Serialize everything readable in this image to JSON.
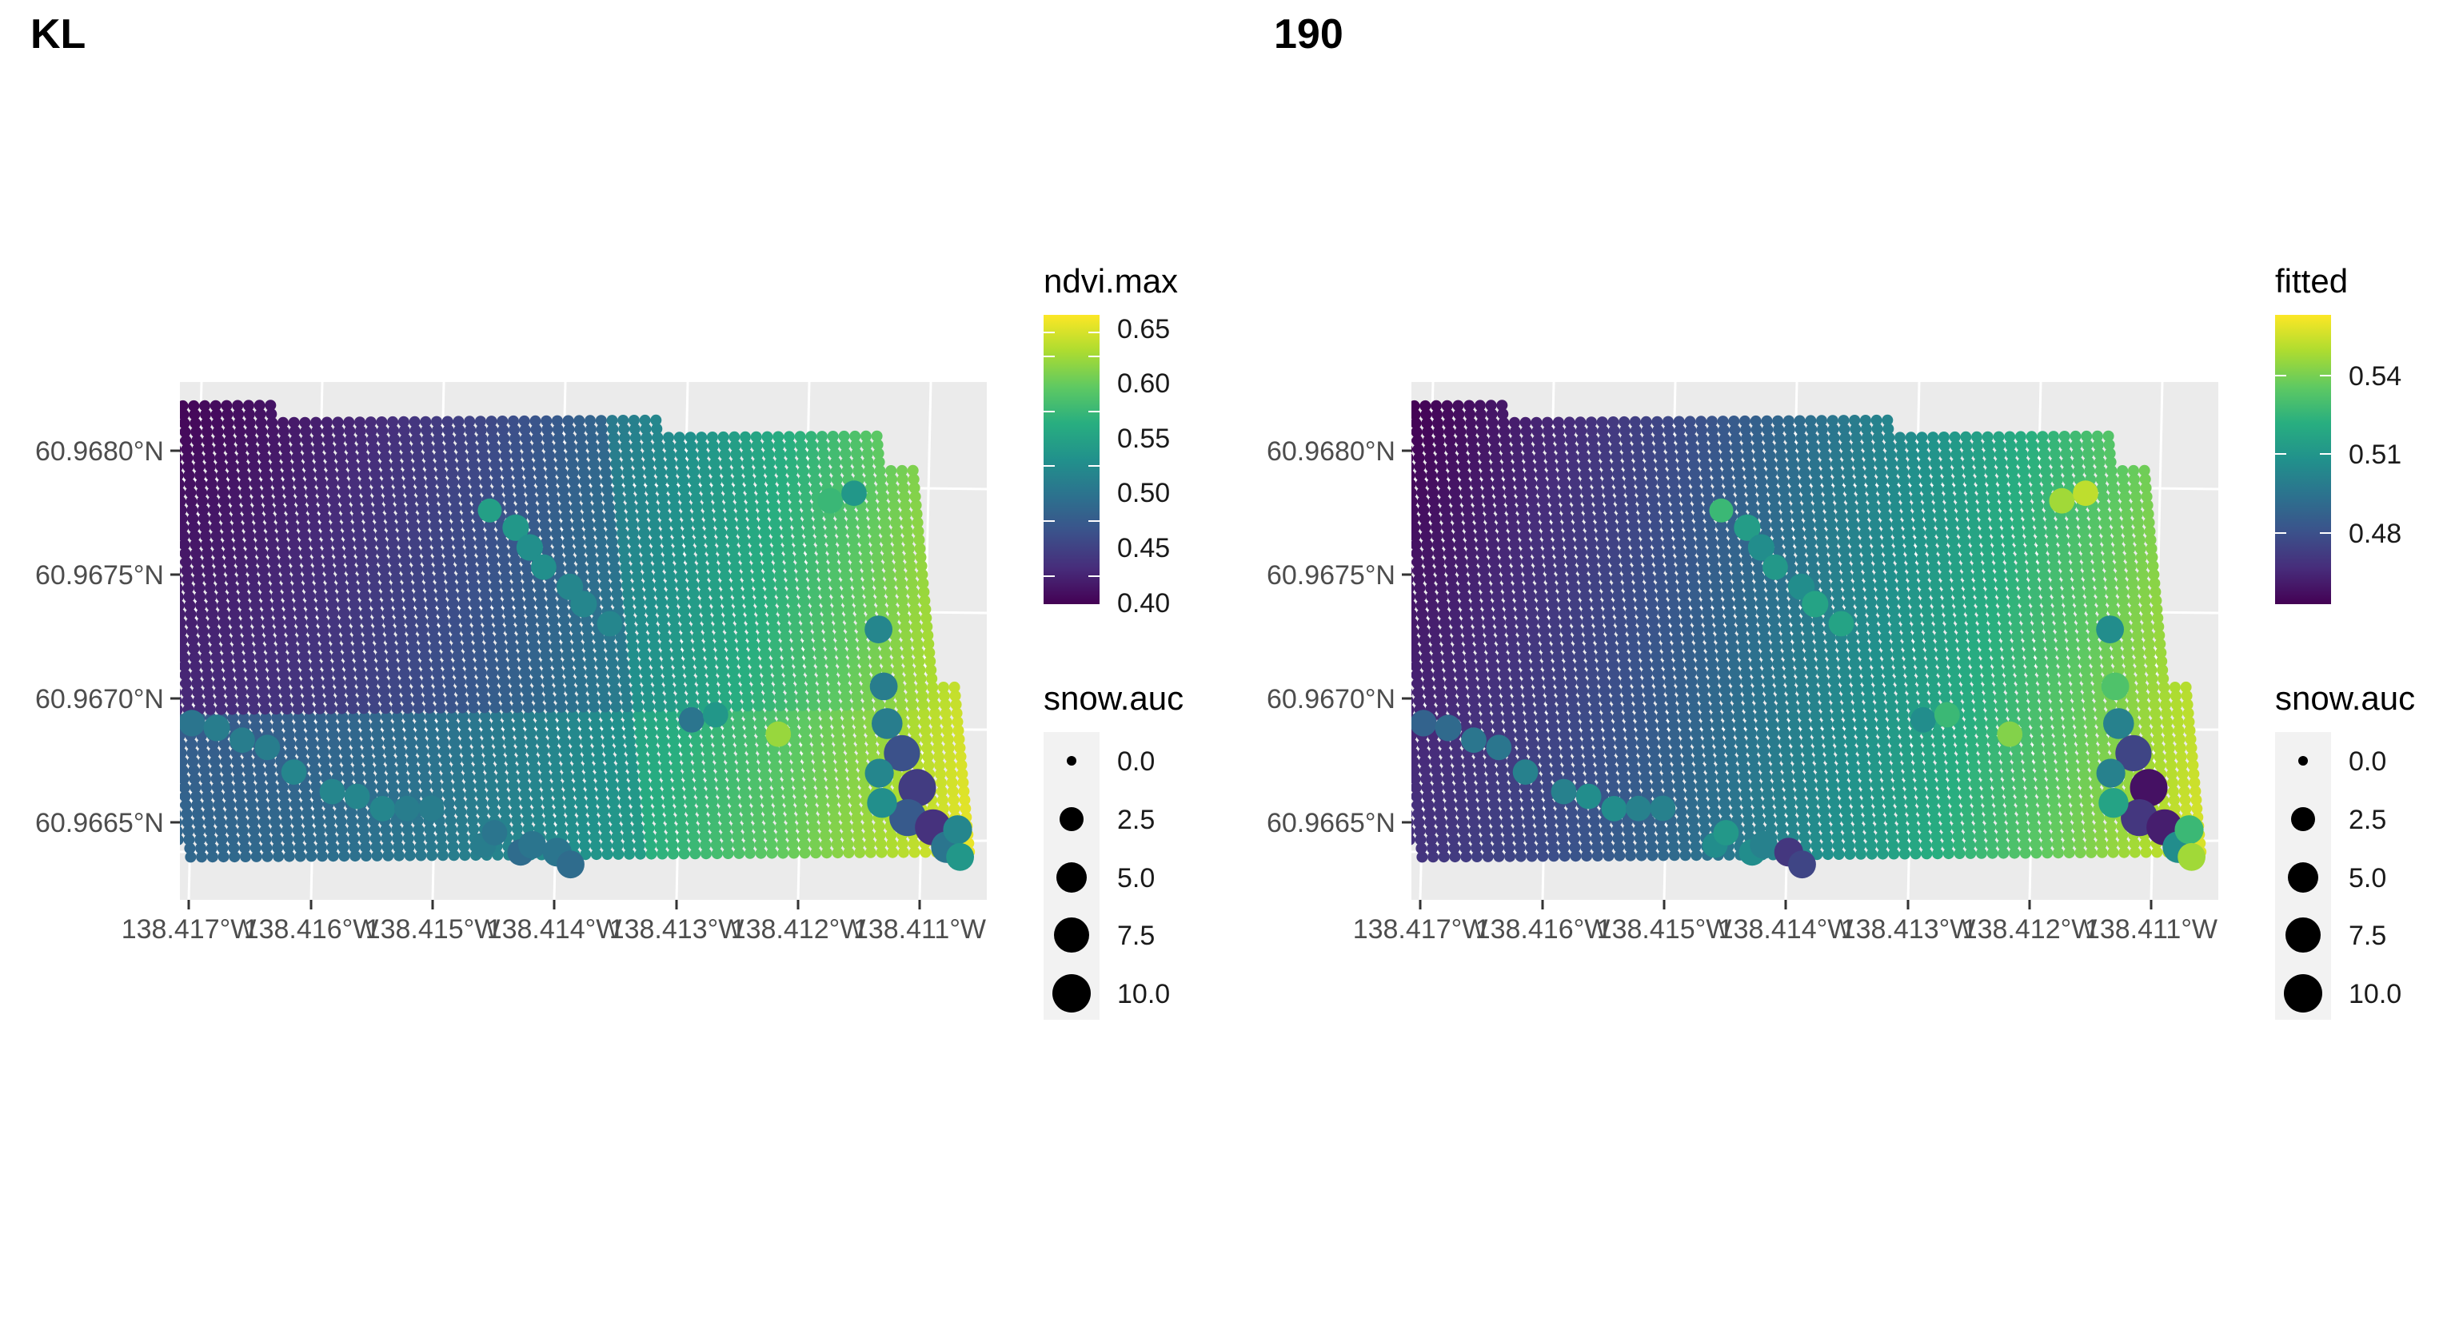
{
  "panels": [
    {
      "tag": "KL",
      "color_legend": {
        "title": "ndvi.max",
        "labels": [
          "0.40",
          "0.45",
          "0.50",
          "0.55",
          "0.60",
          "0.65"
        ],
        "range": [
          0.38,
          0.665
        ]
      },
      "size_legend": {
        "title": "snow.auc",
        "labels": [
          "0.0",
          "2.5",
          "5.0",
          "7.5",
          "10.0"
        ]
      },
      "y_ticks": [
        "60.9665°N",
        "60.9670°N",
        "60.9675°N",
        "60.9680°N"
      ],
      "x_ticks": [
        "138.417°W",
        "138.416°W",
        "138.415°W",
        "138.414°W",
        "138.413°W",
        "138.412°W",
        "138.411°W"
      ]
    },
    {
      "tag": "190",
      "color_legend": {
        "title": "fitted",
        "labels": [
          "0.48",
          "0.51",
          "0.54"
        ],
        "range": [
          0.453,
          0.5605
        ]
      },
      "size_legend": {
        "title": "snow.auc",
        "labels": [
          "0.0",
          "2.5",
          "5.0",
          "7.5",
          "10.0"
        ]
      },
      "y_ticks": [
        "60.9665°N",
        "60.9670°N",
        "60.9675°N",
        "60.9680°N"
      ],
      "x_ticks": [
        "138.417°W",
        "138.416°W",
        "138.415°W",
        "138.414°W",
        "138.413°W",
        "138.412°W",
        "138.411°W"
      ]
    }
  ],
  "chart_data": [
    {
      "type": "scatter",
      "title": "KL",
      "xlabel": "",
      "ylabel": "",
      "xlim": [
        -138.4172,
        -138.4104
      ],
      "ylim": [
        60.96622,
        60.96826
      ],
      "x_ticks": [
        -138.417,
        -138.416,
        -138.415,
        -138.414,
        -138.413,
        -138.412,
        -138.411
      ],
      "y_ticks": [
        60.9665,
        60.967,
        60.9675,
        60.968
      ],
      "color_var": "ndvi.max",
      "color_range": [
        0.38,
        0.665
      ],
      "colormap": "viridis",
      "size_var": "snow.auc",
      "size_range": [
        0,
        10
      ],
      "grid": true,
      "legend_position": "right",
      "points": [
        {
          "lon": -138.4143,
          "lat": 60.96775,
          "c": 0.54,
          "s": 2.5
        },
        {
          "lon": -138.4141,
          "lat": 60.96768,
          "c": 0.53,
          "s": 3.5
        },
        {
          "lon": -138.414,
          "lat": 60.9676,
          "c": 0.52,
          "s": 3.5
        },
        {
          "lon": -138.4139,
          "lat": 60.96752,
          "c": 0.52,
          "s": 3.0
        },
        {
          "lon": -138.4137,
          "lat": 60.96744,
          "c": 0.51,
          "s": 3.5
        },
        {
          "lon": -138.4136,
          "lat": 60.96737,
          "c": 0.51,
          "s": 3.5
        },
        {
          "lon": -138.4134,
          "lat": 60.96729,
          "c": 0.51,
          "s": 3.0
        },
        {
          "lon": -138.4128,
          "lat": 60.9669,
          "c": 0.49,
          "s": 3.0
        },
        {
          "lon": -138.4126,
          "lat": 60.96692,
          "c": 0.53,
          "s": 3.0
        },
        {
          "lon": -138.4121,
          "lat": 60.96684,
          "c": 0.62,
          "s": 3.0
        },
        {
          "lon": -138.4115,
          "lat": 60.96778,
          "c": 0.57,
          "s": 3.0
        },
        {
          "lon": -138.4113,
          "lat": 60.96781,
          "c": 0.53,
          "s": 3.0
        },
        {
          "lon": -138.4112,
          "lat": 60.96726,
          "c": 0.51,
          "s": 4.0
        },
        {
          "lon": -138.4112,
          "lat": 60.96703,
          "c": 0.5,
          "s": 4.0
        },
        {
          "lon": -138.4112,
          "lat": 60.96688,
          "c": 0.5,
          "s": 5.5
        },
        {
          "lon": -138.4111,
          "lat": 60.96676,
          "c": 0.45,
          "s": 8.5
        },
        {
          "lon": -138.411,
          "lat": 60.96662,
          "c": 0.43,
          "s": 9.5
        },
        {
          "lon": -138.4111,
          "lat": 60.9665,
          "c": 0.46,
          "s": 9.0
        },
        {
          "lon": -138.4109,
          "lat": 60.96646,
          "c": 0.42,
          "s": 8.5
        },
        {
          "lon": -138.4108,
          "lat": 60.96638,
          "c": 0.49,
          "s": 6.0
        },
        {
          "lon": -138.4107,
          "lat": 60.96645,
          "c": 0.51,
          "s": 4.5
        },
        {
          "lon": -138.4107,
          "lat": 60.96634,
          "c": 0.53,
          "s": 4.0
        },
        {
          "lon": -138.4113,
          "lat": 60.96656,
          "c": 0.52,
          "s": 5.0
        },
        {
          "lon": -138.4113,
          "lat": 60.96668,
          "c": 0.51,
          "s": 4.5
        },
        {
          "lon": -138.4171,
          "lat": 60.96698,
          "c": 0.51,
          "s": 3.0
        },
        {
          "lon": -138.4171,
          "lat": 60.9669,
          "c": 0.5,
          "s": 3.5
        },
        {
          "lon": -138.4169,
          "lat": 60.9669,
          "c": 0.49,
          "s": 3.5
        },
        {
          "lon": -138.4167,
          "lat": 60.96688,
          "c": 0.5,
          "s": 3.5
        },
        {
          "lon": -138.4165,
          "lat": 60.96683,
          "c": 0.5,
          "s": 3.0
        },
        {
          "lon": -138.4163,
          "lat": 60.9668,
          "c": 0.5,
          "s": 3.0
        },
        {
          "lon": -138.4161,
          "lat": 60.9667,
          "c": 0.51,
          "s": 3.0
        },
        {
          "lon": -138.4158,
          "lat": 60.96662,
          "c": 0.51,
          "s": 3.0
        },
        {
          "lon": -138.4156,
          "lat": 60.9666,
          "c": 0.51,
          "s": 3.0
        },
        {
          "lon": -138.4154,
          "lat": 60.96655,
          "c": 0.51,
          "s": 3.0
        },
        {
          "lon": -138.4152,
          "lat": 60.96655,
          "c": 0.5,
          "s": 3.0
        },
        {
          "lon": -138.415,
          "lat": 60.96655,
          "c": 0.5,
          "s": 3.0
        },
        {
          "lon": -138.4146,
          "lat": 60.9664,
          "c": 0.5,
          "s": 3.0
        },
        {
          "lon": -138.4145,
          "lat": 60.96645,
          "c": 0.49,
          "s": 3.0
        },
        {
          "lon": -138.4143,
          "lat": 60.96637,
          "c": 0.48,
          "s": 3.5
        },
        {
          "lon": -138.4142,
          "lat": 60.9664,
          "c": 0.49,
          "s": 4.0
        },
        {
          "lon": -138.414,
          "lat": 60.96637,
          "c": 0.49,
          "s": 4.5
        },
        {
          "lon": -138.4139,
          "lat": 60.96632,
          "c": 0.48,
          "s": 4.0
        }
      ]
    },
    {
      "type": "scatter",
      "title": "190",
      "xlabel": "",
      "ylabel": "",
      "xlim": [
        -138.4172,
        -138.4104
      ],
      "ylim": [
        60.96622,
        60.96826
      ],
      "x_ticks": [
        -138.417,
        -138.416,
        -138.415,
        -138.414,
        -138.413,
        -138.412,
        -138.411
      ],
      "y_ticks": [
        60.9665,
        60.967,
        60.9675,
        60.968
      ],
      "color_var": "fitted",
      "color_range": [
        0.453,
        0.5605
      ],
      "colormap": "viridis",
      "size_var": "snow.auc",
      "size_range": [
        0,
        10
      ],
      "grid": true,
      "legend_position": "right",
      "points": [
        {
          "lon": -138.4143,
          "lat": 60.96775,
          "c": 0.525,
          "s": 2.5
        },
        {
          "lon": -138.4141,
          "lat": 60.96768,
          "c": 0.512,
          "s": 3.5
        },
        {
          "lon": -138.414,
          "lat": 60.9676,
          "c": 0.505,
          "s": 3.5
        },
        {
          "lon": -138.4139,
          "lat": 60.96752,
          "c": 0.51,
          "s": 3.0
        },
        {
          "lon": -138.4137,
          "lat": 60.96744,
          "c": 0.505,
          "s": 3.5
        },
        {
          "lon": -138.4136,
          "lat": 60.96737,
          "c": 0.515,
          "s": 3.5
        },
        {
          "lon": -138.4134,
          "lat": 60.96729,
          "c": 0.515,
          "s": 3.0
        },
        {
          "lon": -138.4128,
          "lat": 60.9669,
          "c": 0.505,
          "s": 3.0
        },
        {
          "lon": -138.4126,
          "lat": 60.96692,
          "c": 0.525,
          "s": 3.0
        },
        {
          "lon": -138.4121,
          "lat": 60.96684,
          "c": 0.54,
          "s": 3.0
        },
        {
          "lon": -138.4115,
          "lat": 60.96778,
          "c": 0.545,
          "s": 3.0
        },
        {
          "lon": -138.4113,
          "lat": 60.96781,
          "c": 0.55,
          "s": 3.0
        },
        {
          "lon": -138.4112,
          "lat": 60.96726,
          "c": 0.505,
          "s": 4.0
        },
        {
          "lon": -138.4112,
          "lat": 60.96703,
          "c": 0.53,
          "s": 4.0
        },
        {
          "lon": -138.4112,
          "lat": 60.96688,
          "c": 0.5,
          "s": 5.5
        },
        {
          "lon": -138.4111,
          "lat": 60.96676,
          "c": 0.475,
          "s": 8.5
        },
        {
          "lon": -138.411,
          "lat": 60.96662,
          "c": 0.458,
          "s": 9.5
        },
        {
          "lon": -138.4111,
          "lat": 60.9665,
          "c": 0.47,
          "s": 9.0
        },
        {
          "lon": -138.4109,
          "lat": 60.96646,
          "c": 0.462,
          "s": 8.5
        },
        {
          "lon": -138.4108,
          "lat": 60.96638,
          "c": 0.505,
          "s": 6.0
        },
        {
          "lon": -138.4107,
          "lat": 60.96645,
          "c": 0.525,
          "s": 4.5
        },
        {
          "lon": -138.4107,
          "lat": 60.96634,
          "c": 0.545,
          "s": 4.0
        },
        {
          "lon": -138.4113,
          "lat": 60.96656,
          "c": 0.515,
          "s": 5.0
        },
        {
          "lon": -138.4113,
          "lat": 60.96668,
          "c": 0.5,
          "s": 4.5
        },
        {
          "lon": -138.4171,
          "lat": 60.96698,
          "c": 0.49,
          "s": 3.0
        },
        {
          "lon": -138.4171,
          "lat": 60.9669,
          "c": 0.485,
          "s": 3.5
        },
        {
          "lon": -138.4169,
          "lat": 60.9669,
          "c": 0.487,
          "s": 3.5
        },
        {
          "lon": -138.4167,
          "lat": 60.96688,
          "c": 0.49,
          "s": 3.5
        },
        {
          "lon": -138.4165,
          "lat": 60.96683,
          "c": 0.495,
          "s": 3.0
        },
        {
          "lon": -138.4163,
          "lat": 60.9668,
          "c": 0.495,
          "s": 3.0
        },
        {
          "lon": -138.4161,
          "lat": 60.9667,
          "c": 0.5,
          "s": 3.0
        },
        {
          "lon": -138.4158,
          "lat": 60.96662,
          "c": 0.5,
          "s": 3.0
        },
        {
          "lon": -138.4156,
          "lat": 60.9666,
          "c": 0.505,
          "s": 3.0
        },
        {
          "lon": -138.4154,
          "lat": 60.96655,
          "c": 0.505,
          "s": 3.0
        },
        {
          "lon": -138.4152,
          "lat": 60.96655,
          "c": 0.5,
          "s": 3.0
        },
        {
          "lon": -138.415,
          "lat": 60.96655,
          "c": 0.5,
          "s": 3.0
        },
        {
          "lon": -138.4146,
          "lat": 60.9664,
          "c": 0.505,
          "s": 3.0
        },
        {
          "lon": -138.4145,
          "lat": 60.96645,
          "c": 0.51,
          "s": 3.0
        },
        {
          "lon": -138.4143,
          "lat": 60.96637,
          "c": 0.505,
          "s": 3.5
        },
        {
          "lon": -138.4142,
          "lat": 60.9664,
          "c": 0.5,
          "s": 4.0
        },
        {
          "lon": -138.414,
          "lat": 60.96637,
          "c": 0.47,
          "s": 4.5
        },
        {
          "lon": -138.4139,
          "lat": 60.96632,
          "c": 0.475,
          "s": 4.0
        }
      ]
    }
  ]
}
